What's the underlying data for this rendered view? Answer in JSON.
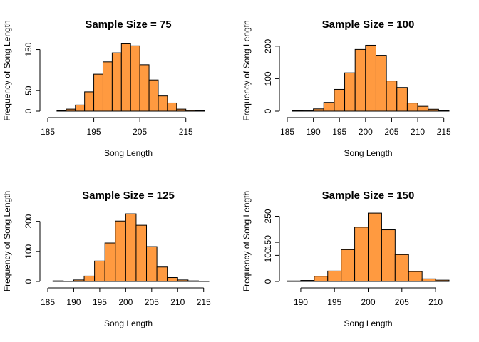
{
  "chart_data": [
    {
      "type": "bar",
      "title": "Sample Size = 75",
      "xlabel": "Song Length",
      "ylabel": "Frequency of Song Length",
      "bin_width": 2,
      "x_ticks": [
        185,
        195,
        205,
        215
      ],
      "y_ticks": [
        0,
        50,
        150
      ],
      "xlim": [
        185,
        220
      ],
      "ylim": [
        0,
        170
      ],
      "bins": [
        {
          "start": 187,
          "value": 1
        },
        {
          "start": 189,
          "value": 5
        },
        {
          "start": 191,
          "value": 15
        },
        {
          "start": 193,
          "value": 47
        },
        {
          "start": 195,
          "value": 90
        },
        {
          "start": 197,
          "value": 120
        },
        {
          "start": 199,
          "value": 142
        },
        {
          "start": 201,
          "value": 164
        },
        {
          "start": 203,
          "value": 159
        },
        {
          "start": 205,
          "value": 113
        },
        {
          "start": 207,
          "value": 76
        },
        {
          "start": 209,
          "value": 37
        },
        {
          "start": 211,
          "value": 20
        },
        {
          "start": 213,
          "value": 5
        },
        {
          "start": 215,
          "value": 2
        },
        {
          "start": 217,
          "value": 1
        }
      ],
      "grid": false,
      "bar_color": "#FF9A40"
    },
    {
      "type": "bar",
      "title": "Sample Size = 100",
      "xlabel": "Song Length",
      "ylabel": "Frequency of Song Length",
      "bin_width": 2,
      "x_ticks": [
        185,
        190,
        195,
        200,
        205,
        210,
        215
      ],
      "y_ticks": [
        0,
        100,
        200
      ],
      "xlim": [
        185,
        216
      ],
      "ylim": [
        0,
        215
      ],
      "bins": [
        {
          "start": 186,
          "value": 2
        },
        {
          "start": 188,
          "value": 1
        },
        {
          "start": 190,
          "value": 7
        },
        {
          "start": 192,
          "value": 27
        },
        {
          "start": 194,
          "value": 67
        },
        {
          "start": 196,
          "value": 118
        },
        {
          "start": 198,
          "value": 190
        },
        {
          "start": 200,
          "value": 203
        },
        {
          "start": 202,
          "value": 172
        },
        {
          "start": 204,
          "value": 93
        },
        {
          "start": 206,
          "value": 73
        },
        {
          "start": 208,
          "value": 25
        },
        {
          "start": 210,
          "value": 15
        },
        {
          "start": 212,
          "value": 6
        },
        {
          "start": 214,
          "value": 2
        }
      ],
      "grid": false,
      "bar_color": "#FF9A40"
    },
    {
      "type": "bar",
      "title": "Sample Size = 125",
      "xlabel": "Song Length",
      "ylabel": "Frequency of Song Length",
      "bin_width": 2,
      "x_ticks": [
        185,
        190,
        195,
        200,
        205,
        210,
        215
      ],
      "y_ticks": [
        0,
        100,
        200
      ],
      "xlim": [
        185,
        216
      ],
      "ylim": [
        0,
        230
      ],
      "bins": [
        {
          "start": 186,
          "value": 2
        },
        {
          "start": 188,
          "value": 1
        },
        {
          "start": 190,
          "value": 5
        },
        {
          "start": 192,
          "value": 18
        },
        {
          "start": 194,
          "value": 68
        },
        {
          "start": 196,
          "value": 128
        },
        {
          "start": 198,
          "value": 201
        },
        {
          "start": 200,
          "value": 225
        },
        {
          "start": 202,
          "value": 187
        },
        {
          "start": 204,
          "value": 116
        },
        {
          "start": 206,
          "value": 48
        },
        {
          "start": 208,
          "value": 13
        },
        {
          "start": 210,
          "value": 5
        },
        {
          "start": 212,
          "value": 2
        },
        {
          "start": 214,
          "value": 1
        }
      ],
      "grid": false,
      "bar_color": "#FF9A40"
    },
    {
      "type": "bar",
      "title": "Sample Size = 150",
      "xlabel": "Song Length",
      "ylabel": "Frequency of Song Length",
      "bin_width": 2,
      "x_ticks": [
        190,
        195,
        200,
        205,
        210
      ],
      "y_ticks": [
        0,
        100,
        150,
        250
      ],
      "xlim": [
        188,
        212
      ],
      "ylim": [
        0,
        265
      ],
      "bins": [
        {
          "start": 188,
          "value": 2
        },
        {
          "start": 190,
          "value": 4
        },
        {
          "start": 192,
          "value": 20
        },
        {
          "start": 194,
          "value": 40
        },
        {
          "start": 196,
          "value": 122
        },
        {
          "start": 198,
          "value": 208
        },
        {
          "start": 200,
          "value": 262
        },
        {
          "start": 202,
          "value": 198
        },
        {
          "start": 204,
          "value": 103
        },
        {
          "start": 206,
          "value": 38
        },
        {
          "start": 208,
          "value": 10
        },
        {
          "start": 210,
          "value": 5
        }
      ],
      "grid": false,
      "bar_color": "#FF9A40"
    }
  ]
}
